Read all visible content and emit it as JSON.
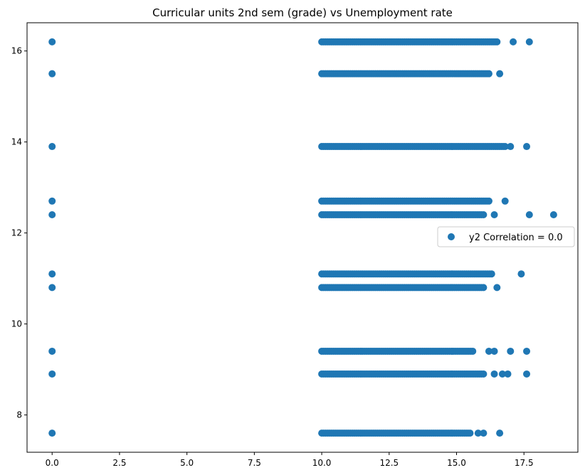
{
  "chart_data": {
    "type": "scatter",
    "title": "Curricular units 2nd sem (grade) vs Unemployment rate",
    "xlabel": "",
    "ylabel": "",
    "xlim": [
      -0.93,
      19.5
    ],
    "ylim": [
      7.18,
      16.62
    ],
    "xticks": [
      0.0,
      2.5,
      5.0,
      7.5,
      10.0,
      12.5,
      15.0,
      17.5
    ],
    "xtick_labels": [
      "0.0",
      "2.5",
      "5.0",
      "7.5",
      "10.0",
      "12.5",
      "15.0",
      "17.5"
    ],
    "yticks": [
      8,
      10,
      12,
      14,
      16
    ],
    "ytick_labels": [
      "8",
      "10",
      "12",
      "14",
      "16"
    ],
    "grid": false,
    "legend": {
      "position": "center-right",
      "entries": [
        "y2 Correlation = 0.0"
      ]
    },
    "marker_color": "#1f77b4",
    "series": [
      {
        "name": "y2 Correlation = 0.0",
        "groups": [
          {
            "y": 16.2,
            "xmin": 10.0,
            "xmax": 16.5,
            "extra_x": [
              0.0,
              17.1,
              17.7
            ]
          },
          {
            "y": 15.5,
            "xmin": 10.0,
            "xmax": 16.2,
            "extra_x": [
              0.0,
              16.6
            ]
          },
          {
            "y": 13.9,
            "xmin": 10.0,
            "xmax": 16.8,
            "extra_x": [
              0.0,
              17.0,
              17.6
            ]
          },
          {
            "y": 12.7,
            "xmin": 10.0,
            "xmax": 16.2,
            "extra_x": [
              0.0,
              16.8
            ]
          },
          {
            "y": 12.4,
            "xmin": 10.0,
            "xmax": 16.0,
            "extra_x": [
              0.0,
              16.4,
              17.7,
              18.6
            ]
          },
          {
            "y": 11.1,
            "xmin": 10.0,
            "xmax": 16.3,
            "extra_x": [
              0.0,
              17.4
            ]
          },
          {
            "y": 10.8,
            "xmin": 10.0,
            "xmax": 16.0,
            "extra_x": [
              0.0,
              16.5
            ]
          },
          {
            "y": 9.4,
            "xmin": 10.0,
            "xmax": 15.6,
            "extra_x": [
              0.0,
              16.2,
              16.4,
              17.0,
              17.6
            ]
          },
          {
            "y": 8.9,
            "xmin": 10.0,
            "xmax": 16.0,
            "extra_x": [
              0.0,
              16.4,
              16.7,
              16.9,
              17.6
            ]
          },
          {
            "y": 7.6,
            "xmin": 10.0,
            "xmax": 15.5,
            "extra_x": [
              0.0,
              15.8,
              16.0,
              16.6
            ]
          }
        ]
      }
    ]
  }
}
